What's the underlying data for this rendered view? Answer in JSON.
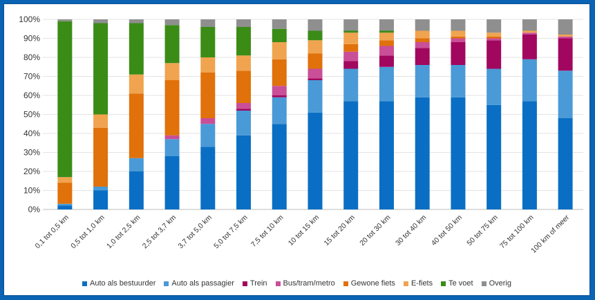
{
  "chart_data": {
    "type": "bar",
    "stacked": true,
    "categories": [
      "0,1 tot 0,5 km",
      "0,5 tot 1,0 km",
      "1,0 tot 2,5 km",
      "2,5 tot 3,7 km",
      "3,7 tot 5,0 km",
      "5,0 tot 7,5 km",
      "7,5 tot 10 km",
      "10 tot 15 km",
      "15 tot 20 km",
      "20 tot 30 km",
      "30 tot 40 km",
      "40 tot 50 km",
      "50 tot 75 km",
      "75 tot 100 km",
      "100 km of meer"
    ],
    "yticks": [
      "0%",
      "10%",
      "20%",
      "30%",
      "40%",
      "50%",
      "60%",
      "70%",
      "80%",
      "90%",
      "100%"
    ],
    "ylim": [
      0,
      100
    ],
    "legend_position": "bottom",
    "series": [
      {
        "name": "Auto als bestuurder",
        "color": "#0a6fc4",
        "values": [
          2,
          10,
          20,
          28,
          33,
          39,
          45,
          51,
          57,
          57,
          59,
          59,
          55,
          57,
          48
        ]
      },
      {
        "name": "Auto als passagier",
        "color": "#4a9ad7",
        "values": [
          1,
          2,
          7,
          9,
          12,
          13,
          14,
          17,
          17,
          18,
          17,
          17,
          19,
          22,
          25
        ]
      },
      {
        "name": "Trein",
        "color": "#a2075f",
        "values": [
          0,
          0,
          0,
          0,
          0,
          1,
          1,
          1,
          4,
          6,
          9,
          12,
          15,
          13,
          17
        ]
      },
      {
        "name": "Bus/tram/metro",
        "color": "#c94f98",
        "values": [
          0,
          0,
          0,
          2,
          3,
          3,
          5,
          5,
          5,
          5,
          3,
          2,
          1,
          1,
          1
        ]
      },
      {
        "name": "Gewone fiets",
        "color": "#e0710b",
        "values": [
          11,
          31,
          34,
          29,
          24,
          17,
          14,
          8,
          4,
          3,
          2,
          1,
          1,
          0,
          0
        ]
      },
      {
        "name": "E-fiets",
        "color": "#f0a44f",
        "values": [
          3,
          7,
          10,
          9,
          8,
          8,
          9,
          7,
          6,
          4,
          4,
          3,
          2,
          1,
          1
        ]
      },
      {
        "name": "Te voet",
        "color": "#3a8c17",
        "values": [
          82,
          48,
          27,
          20,
          16,
          15,
          7,
          5,
          1,
          1,
          0,
          0,
          0,
          0,
          0
        ]
      },
      {
        "name": "Overig",
        "color": "#8f8f8f",
        "values": [
          1,
          2,
          2,
          3,
          4,
          4,
          5,
          6,
          6,
          6,
          6,
          6,
          7,
          6,
          8
        ]
      }
    ]
  }
}
